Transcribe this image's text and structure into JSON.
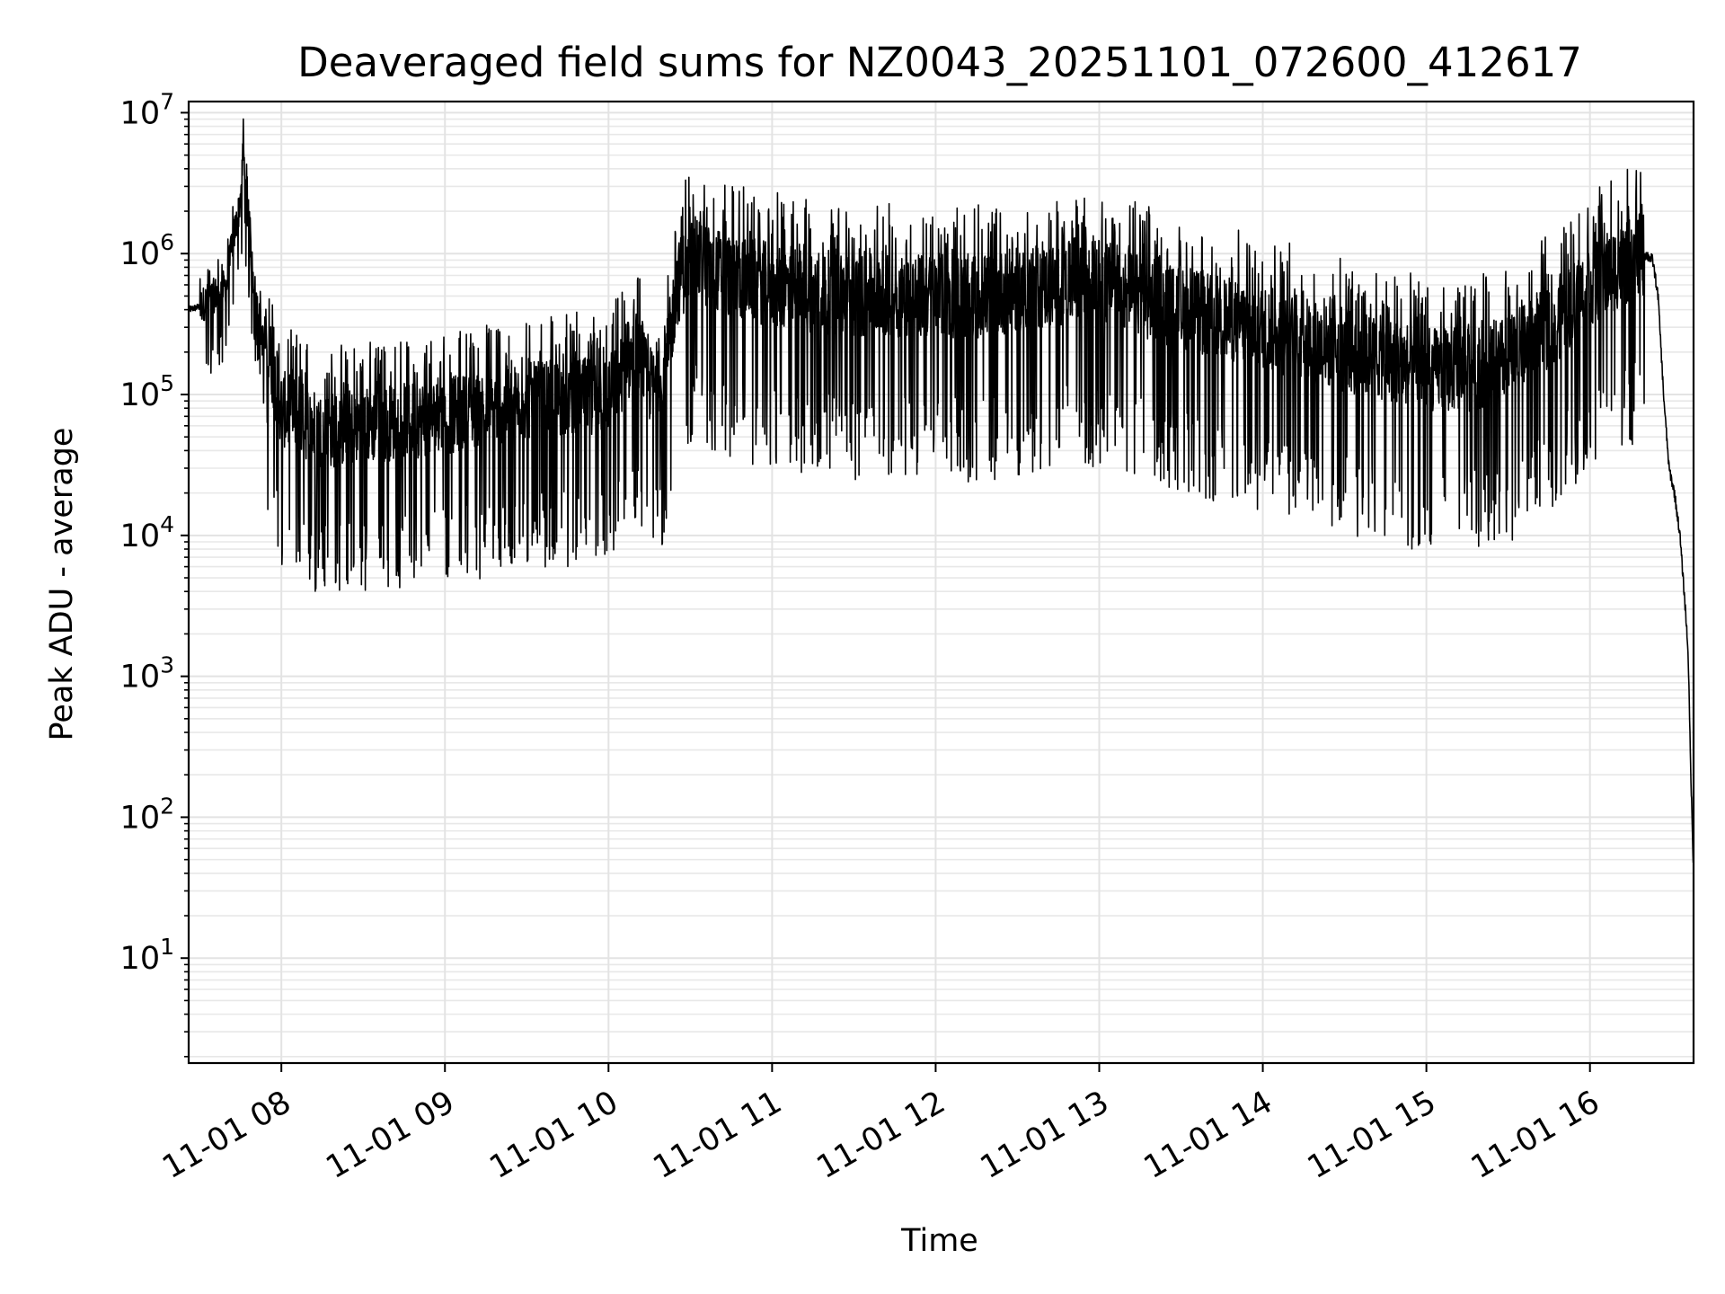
{
  "chart_data": {
    "type": "line",
    "title": "Deaveraged field sums for NZ0043_20251101_072600_412617",
    "xlabel": "Time",
    "ylabel": "Peak ADU - average",
    "yscale": "log",
    "ylim": [
      1.8,
      12000000
    ],
    "xlim": [
      "2025-11-01 07:26",
      "2025-11-01 16:38"
    ],
    "grid": true,
    "line_color": "#000000",
    "x_ticks": [
      {
        "value": "2025-11-01 08:00",
        "label": "11-01 08"
      },
      {
        "value": "2025-11-01 09:00",
        "label": "11-01 09"
      },
      {
        "value": "2025-11-01 10:00",
        "label": "11-01 10"
      },
      {
        "value": "2025-11-01 11:00",
        "label": "11-01 11"
      },
      {
        "value": "2025-11-01 12:00",
        "label": "11-01 12"
      },
      {
        "value": "2025-11-01 13:00",
        "label": "11-01 13"
      },
      {
        "value": "2025-11-01 14:00",
        "label": "11-01 14"
      },
      {
        "value": "2025-11-01 15:00",
        "label": "11-01 15"
      },
      {
        "value": "2025-11-01 16:00",
        "label": "11-01 16"
      }
    ],
    "y_ticks": [
      {
        "value": 10,
        "base": "10",
        "exp": "1"
      },
      {
        "value": 100,
        "base": "10",
        "exp": "2"
      },
      {
        "value": 1000,
        "base": "10",
        "exp": "3"
      },
      {
        "value": 10000,
        "base": "10",
        "exp": "4"
      },
      {
        "value": 100000,
        "base": "10",
        "exp": "5"
      },
      {
        "value": 1000000,
        "base": "10",
        "exp": "6"
      },
      {
        "value": 10000000,
        "base": "10",
        "exp": "7"
      }
    ],
    "series": [
      {
        "x": [
          "2025-11-01 07:26",
          "2025-11-01 07:30",
          "2025-11-01 07:35",
          "2025-11-01 07:40",
          "2025-11-01 07:42",
          "2025-11-01 07:44",
          "2025-11-01 07:45",
          "2025-11-01 07:46",
          "2025-11-01 07:48",
          "2025-11-01 07:50",
          "2025-11-01 07:53",
          "2025-11-01 07:56",
          "2025-11-01 08:00",
          "2025-11-01 08:15",
          "2025-11-01 08:30",
          "2025-11-01 08:45",
          "2025-11-01 09:00",
          "2025-11-01 09:15",
          "2025-11-01 09:30",
          "2025-11-01 09:45",
          "2025-11-01 10:00",
          "2025-11-01 10:10",
          "2025-11-01 10:15",
          "2025-11-01 10:20",
          "2025-11-01 10:25",
          "2025-11-01 10:30",
          "2025-11-01 10:45",
          "2025-11-01 11:00",
          "2025-11-01 11:15",
          "2025-11-01 11:30",
          "2025-11-01 11:45",
          "2025-11-01 12:00",
          "2025-11-01 12:15",
          "2025-11-01 12:30",
          "2025-11-01 12:45",
          "2025-11-01 13:00",
          "2025-11-01 13:15",
          "2025-11-01 13:30",
          "2025-11-01 13:45",
          "2025-11-01 14:00",
          "2025-11-01 14:15",
          "2025-11-01 14:30",
          "2025-11-01 14:45",
          "2025-11-01 15:00",
          "2025-11-01 15:15",
          "2025-11-01 15:30",
          "2025-11-01 15:45",
          "2025-11-01 16:00",
          "2025-11-01 16:10",
          "2025-11-01 16:20",
          "2025-11-01 16:23",
          "2025-11-01 16:25",
          "2025-11-01 16:27",
          "2025-11-01 16:29",
          "2025-11-01 16:31",
          "2025-11-01 16:33",
          "2025-11-01 16:35",
          "2025-11-01 16:36",
          "2025-11-01 16:37",
          "2025-11-01 16:38"
        ],
        "y": [
          400000,
          420000,
          500000,
          600000,
          1200000,
          1800000,
          2500000,
          5500000,
          1500000,
          600000,
          250000,
          180000,
          80000,
          55000,
          60000,
          65000,
          70000,
          80000,
          90000,
          95000,
          100000,
          200000,
          120000,
          100000,
          600000,
          900000,
          700000,
          600000,
          550000,
          500000,
          500000,
          500000,
          500000,
          550000,
          600000,
          650000,
          500000,
          400000,
          350000,
          300000,
          250000,
          200000,
          180000,
          150000,
          150000,
          180000,
          300000,
          600000,
          800000,
          1000000,
          900000,
          500000,
          100000,
          30000,
          20000,
          10000,
          3000,
          1500,
          200,
          40
        ]
      }
    ]
  }
}
